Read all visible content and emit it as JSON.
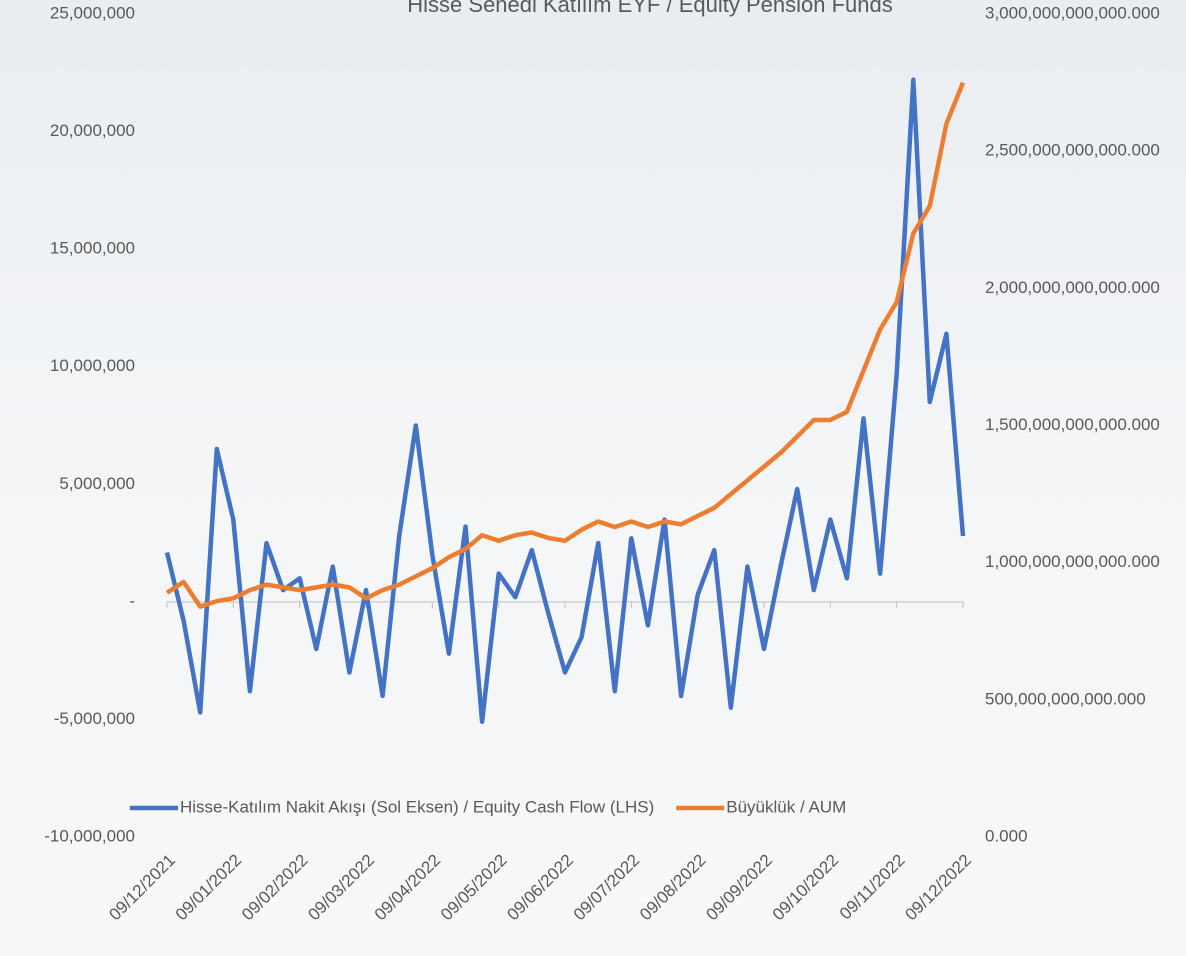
{
  "chart_data": {
    "type": "line",
    "title": "Hisse Senedi Katılım EYF / Equity Pension Funds",
    "categories": [
      "09/12/2021",
      null,
      null,
      null,
      "09/01/2022",
      null,
      null,
      null,
      "09/02/2022",
      null,
      null,
      null,
      "09/03/2022",
      null,
      null,
      null,
      "09/04/2022",
      null,
      null,
      null,
      "09/05/2022",
      null,
      null,
      null,
      "09/06/2022",
      null,
      null,
      null,
      "09/07/2022",
      null,
      null,
      null,
      "09/08/2022",
      null,
      null,
      null,
      "09/09/2022",
      null,
      null,
      null,
      "09/10/2022",
      null,
      null,
      null,
      "09/11/2022",
      null,
      null,
      null,
      "09/12/2022"
    ],
    "series": [
      {
        "name": "Hisse-Katılım Nakit Akışı (Sol Eksen) / Equity Cash Flow (LHS)",
        "color": "#4472c4",
        "values": [
          2100000,
          -800000,
          -4700000,
          6500000,
          3500000,
          -3800000,
          2500000,
          500000,
          1000000,
          -2000000,
          1500000,
          -3000000,
          500000,
          -4000000,
          2800000,
          7500000,
          2000000,
          -2200000,
          3200000,
          -5100000,
          1200000,
          200000,
          2200000,
          -500000,
          -3000000,
          -1500000,
          2500000,
          -3800000,
          2700000,
          -1000000,
          3500000,
          -4000000,
          300000,
          2200000,
          -4500000,
          1500000,
          -2000000,
          1500000,
          4800000,
          500000,
          3500000,
          1000000,
          7800000,
          1200000,
          9700000,
          22200000,
          8500000,
          11400000,
          2800000
        ]
      },
      {
        "name": "Büyüklük / AUM",
        "color": "#ed7d31",
        "axis": "y2",
        "values": [
          890000000000,
          930000000000,
          840000000000,
          860000000000,
          870000000000,
          900000000000,
          920000000000,
          910000000000,
          900000000000,
          910000000000,
          920000000000,
          910000000000,
          870000000000,
          900000000000,
          920000000000,
          950000000000,
          980000000000,
          1020000000000,
          1050000000000,
          1100000000000,
          1080000000000,
          1100000000000,
          1110000000000,
          1090000000000,
          1080000000000,
          1120000000000,
          1150000000000,
          1130000000000,
          1150000000000,
          1130000000000,
          1150000000000,
          1140000000000,
          1170000000000,
          1200000000000,
          1250000000000,
          1300000000000,
          1350000000000,
          1400000000000,
          1460000000000,
          1520000000000,
          1520000000000,
          1550000000000,
          1700000000000,
          1850000000000,
          1950000000000,
          2200000000000,
          2300000000000,
          2600000000000,
          2750000000000
        ]
      }
    ],
    "ylim": [
      -10000000,
      25000000
    ],
    "yticks": [
      {
        "value": -10000000,
        "label": "-10,000,000"
      },
      {
        "value": -5000000,
        "label": "-5,000,000"
      },
      {
        "value": 0,
        "label": "-"
      },
      {
        "value": 5000000,
        "label": "5,000,000"
      },
      {
        "value": 10000000,
        "label": "10,000,000"
      },
      {
        "value": 15000000,
        "label": "15,000,000"
      },
      {
        "value": 20000000,
        "label": "20,000,000"
      },
      {
        "value": 25000000,
        "label": "25,000,000"
      }
    ],
    "y2lim": [
      0,
      3000000000000
    ],
    "y2ticks": [
      {
        "value": 0,
        "label": "0.000"
      },
      {
        "value": 500000000000,
        "label": "500,000,000,000.000"
      },
      {
        "value": 1000000000000,
        "label": "1,000,000,000,000.000"
      },
      {
        "value": 1500000000000,
        "label": "1,500,000,000,000.000"
      },
      {
        "value": 2000000000000,
        "label": "2,000,000,000,000.000"
      },
      {
        "value": 2500000000000,
        "label": "2,500,000,000,000.000"
      },
      {
        "value": 3000000000000,
        "label": "3,000,000,000,000.000"
      }
    ],
    "grid": false,
    "legend": "bottom"
  }
}
